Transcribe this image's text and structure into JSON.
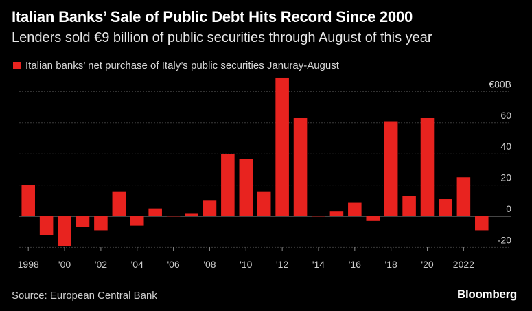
{
  "title": "Italian Banks’ Sale of Public Debt Hits Record Since 2000",
  "subtitle": "Lenders sold €9 billion of public securities through August of this year",
  "source": "Source: European Central Bank",
  "logo_text": "Bloomberg",
  "colors": {
    "bar": "#e8231f",
    "background": "#000000",
    "grid": "#3a3a3a",
    "axis_text": "#cccccc"
  },
  "chart_data": {
    "type": "bar",
    "title": "Italian Banks’ Sale of Public Debt Hits Record Since 2000",
    "subtitle": "Lenders sold €9 billion of public securities through August of this year",
    "xlabel": "",
    "ylabel": "",
    "legend": {
      "placement": "top-left",
      "entries": [
        "Italian banks’ net purchase of Italy’s public securities Januray-August"
      ]
    },
    "grid": true,
    "ylim": [
      -20,
      90
    ],
    "y_ticks": [
      {
        "value": 80,
        "label": "€80B"
      },
      {
        "value": 60,
        "label": "60"
      },
      {
        "value": 40,
        "label": "40"
      },
      {
        "value": 20,
        "label": "20"
      },
      {
        "value": 0,
        "label": "0"
      },
      {
        "value": -20,
        "label": "-20"
      }
    ],
    "x_ticks": [
      {
        "year": 1998,
        "label": "1998"
      },
      {
        "year": 2000,
        "label": "'00"
      },
      {
        "year": 2002,
        "label": "'02"
      },
      {
        "year": 2004,
        "label": "'04"
      },
      {
        "year": 2006,
        "label": "'06"
      },
      {
        "year": 2008,
        "label": "'08"
      },
      {
        "year": 2010,
        "label": "'10"
      },
      {
        "year": 2012,
        "label": "'12"
      },
      {
        "year": 2014,
        "label": "'14"
      },
      {
        "year": 2016,
        "label": "'16"
      },
      {
        "year": 2018,
        "label": "'18"
      },
      {
        "year": 2020,
        "label": "'20"
      },
      {
        "year": 2022,
        "label": "2022"
      }
    ],
    "series": [
      {
        "name": "Italian banks’ net purchase of Italy’s public securities Januray-August",
        "x": [
          1998,
          1999,
          2000,
          2001,
          2002,
          2003,
          2004,
          2005,
          2006,
          2007,
          2008,
          2009,
          2010,
          2011,
          2012,
          2013,
          2014,
          2015,
          2016,
          2017,
          2018,
          2019,
          2020,
          2021,
          2022,
          2023
        ],
        "values": [
          20,
          -12,
          -19,
          -7,
          -9,
          16,
          -6,
          5,
          0,
          2,
          10,
          40,
          37,
          16,
          89,
          63,
          0,
          3,
          9,
          -3,
          61,
          13,
          63,
          11,
          25,
          -9
        ]
      }
    ]
  }
}
